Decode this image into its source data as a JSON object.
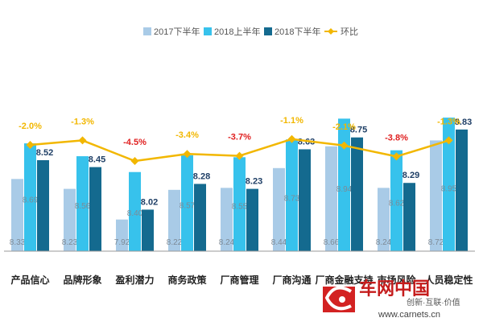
{
  "chart_data": {
    "type": "bar",
    "categories": [
      "产品信心",
      "品牌形象",
      "盈利潜力",
      "商务政策",
      "厂商管理",
      "厂商沟通",
      "厂商金融支持",
      "市场风险",
      "人员稳定性"
    ],
    "series": [
      {
        "name": "2017下半年",
        "values": [
          8.33,
          8.23,
          7.92,
          8.22,
          8.24,
          8.44,
          8.66,
          8.24,
          8.72
        ]
      },
      {
        "name": "2018上半年",
        "values": [
          8.69,
          8.56,
          8.4,
          8.57,
          8.55,
          8.73,
          8.94,
          8.62,
          8.95
        ]
      },
      {
        "name": "2018下半年",
        "values": [
          8.52,
          8.45,
          8.02,
          8.28,
          8.23,
          8.63,
          8.75,
          8.29,
          8.83
        ]
      }
    ],
    "line_series": {
      "name": "环比",
      "values": [
        -2.0,
        -1.3,
        -4.5,
        -3.4,
        -3.7,
        -1.1,
        -2.1,
        -3.8,
        -1.3
      ],
      "labels": [
        "-2.0%",
        "-1.3%",
        "-4.5%",
        "-3.4%",
        "-3.7%",
        "-1.1%",
        "-2.1%",
        "-3.8%",
        "-1.3%"
      ]
    },
    "ylim": [
      7.6,
      9.0
    ],
    "line_ylim": [
      -5.5,
      -0.5
    ],
    "legend_position": "top-center",
    "grid": false,
    "colors": {
      "series": [
        "#a9cbe7",
        "#37c2ec",
        "#146a8f"
      ],
      "line": "#f2b700",
      "pct_normal": "#f2b700",
      "pct_alert": "#e02020"
    }
  },
  "watermark": {
    "logo_text": "车网中国",
    "sub_text": "创新·互联·价值",
    "url": "www.carnets.cn"
  }
}
